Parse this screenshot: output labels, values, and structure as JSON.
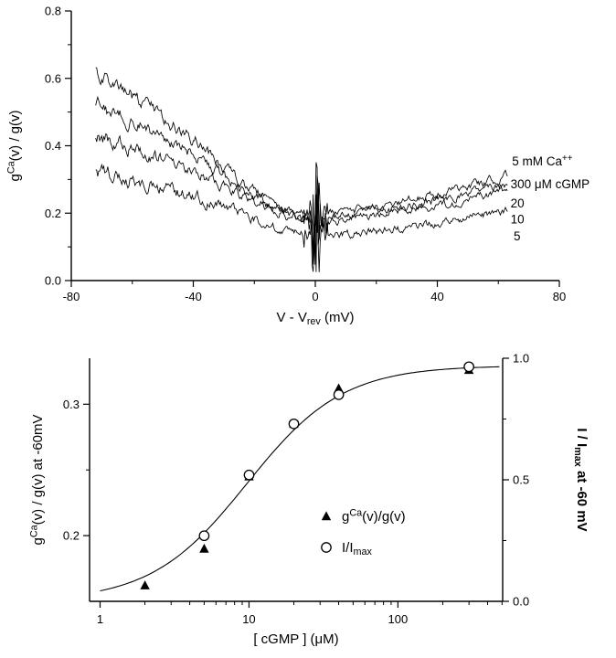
{
  "figure": {
    "background": "#ffffff",
    "ink": "#000000"
  },
  "chart_data": [
    {
      "id": "conductance_traces",
      "type": "line",
      "title": "",
      "xlabel": "V - V_{rev}  (mV)",
      "ylabel": "g^{Ca}(v) / g(v)",
      "xlim": [
        -80,
        80
      ],
      "ylim": [
        0,
        0.8
      ],
      "x_major_ticks": [
        -80,
        -40,
        0,
        40,
        80
      ],
      "x_tick_labels": [
        "-80",
        "-40",
        "0",
        "40",
        "80"
      ],
      "x_minor_ticks": [
        -60,
        -20,
        20,
        60
      ],
      "y_major_ticks": [
        0,
        0.2,
        0.4,
        0.6,
        0.8
      ],
      "y_tick_labels": [
        "0.0",
        "0.2",
        "0.4",
        "0.6",
        "0.8"
      ],
      "y_minor_ticks": [
        0.1,
        0.3,
        0.5,
        0.7
      ],
      "grid": false,
      "data_x_range": [
        -72,
        63
      ],
      "annotations": [
        {
          "text": "5 mM Ca^{++}",
          "v": 64.5,
          "g": 0.352
        },
        {
          "text": "300 μM cGMP",
          "v": 64.0,
          "g": 0.285
        },
        {
          "text": "20",
          "v": 64.0,
          "g": 0.228
        },
        {
          "text": "10",
          "v": 64.0,
          "g": 0.18
        },
        {
          "text": "5",
          "v": 65.0,
          "g": 0.13
        }
      ],
      "noise": {
        "white": 0.018,
        "corr": 0.72,
        "neg_gain": 0.9,
        "artifact_amp": 0.32,
        "artifact_range": 1.3,
        "near_amp": 0.07,
        "near_range": 4
      },
      "series": [
        {
          "name": "300 μM cGMP",
          "seed": 3001,
          "anchors": [
            [
              -72,
              0.625
            ],
            [
              -65,
              0.585
            ],
            [
              -60,
              0.55
            ],
            [
              -55,
              0.52
            ],
            [
              -50,
              0.49
            ],
            [
              -45,
              0.455
            ],
            [
              -40,
              0.42
            ],
            [
              -35,
              0.38
            ],
            [
              -30,
              0.335
            ],
            [
              -25,
              0.3
            ],
            [
              -20,
              0.265
            ],
            [
              -15,
              0.235
            ],
            [
              -10,
              0.215
            ],
            [
              -5,
              0.2
            ],
            [
              0,
              0.195
            ],
            [
              5,
              0.2
            ],
            [
              10,
              0.205
            ],
            [
              15,
              0.21
            ],
            [
              20,
              0.22
            ],
            [
              30,
              0.24
            ],
            [
              40,
              0.26
            ],
            [
              50,
              0.28
            ],
            [
              57,
              0.295
            ],
            [
              63,
              0.31
            ]
          ]
        },
        {
          "name": "20 μM cGMP",
          "seed": 3002,
          "anchors": [
            [
              -72,
              0.52
            ],
            [
              -65,
              0.49
            ],
            [
              -60,
              0.47
            ],
            [
              -50,
              0.43
            ],
            [
              -40,
              0.375
            ],
            [
              -30,
              0.31
            ],
            [
              -25,
              0.28
            ],
            [
              -20,
              0.25
            ],
            [
              -15,
              0.225
            ],
            [
              -10,
              0.205
            ],
            [
              -5,
              0.19
            ],
            [
              0,
              0.185
            ],
            [
              5,
              0.19
            ],
            [
              15,
              0.2
            ],
            [
              25,
              0.215
            ],
            [
              35,
              0.23
            ],
            [
              45,
              0.25
            ],
            [
              55,
              0.27
            ],
            [
              63,
              0.285
            ]
          ]
        },
        {
          "name": "10 μM cGMP",
          "seed": 3003,
          "anchors": [
            [
              -72,
              0.425
            ],
            [
              -65,
              0.41
            ],
            [
              -60,
              0.395
            ],
            [
              -50,
              0.36
            ],
            [
              -40,
              0.325
            ],
            [
              -30,
              0.28
            ],
            [
              -20,
              0.235
            ],
            [
              -15,
              0.215
            ],
            [
              -10,
              0.195
            ],
            [
              -5,
              0.18
            ],
            [
              0,
              0.175
            ],
            [
              5,
              0.175
            ],
            [
              15,
              0.185
            ],
            [
              25,
              0.2
            ],
            [
              35,
              0.215
            ],
            [
              45,
              0.23
            ],
            [
              55,
              0.25
            ],
            [
              63,
              0.265
            ]
          ]
        },
        {
          "name": "5 μM cGMP",
          "seed": 3004,
          "anchors": [
            [
              -72,
              0.32
            ],
            [
              -65,
              0.31
            ],
            [
              -60,
              0.3
            ],
            [
              -50,
              0.275
            ],
            [
              -40,
              0.25
            ],
            [
              -30,
              0.215
            ],
            [
              -20,
              0.18
            ],
            [
              -15,
              0.165
            ],
            [
              -10,
              0.15
            ],
            [
              -5,
              0.14
            ],
            [
              0,
              0.13
            ],
            [
              5,
              0.13
            ],
            [
              15,
              0.14
            ],
            [
              25,
              0.15
            ],
            [
              35,
              0.165
            ],
            [
              45,
              0.18
            ],
            [
              55,
              0.195
            ],
            [
              63,
              0.205
            ]
          ]
        }
      ]
    },
    {
      "id": "dose_response",
      "type": "scatter",
      "title": "",
      "xlabel": "[ cGMP ]  (μM)",
      "ylabel_left": "g^{Ca}(v) / g(v) at -60mV",
      "ylabel_right": "I / I_{max}  at  -60 mV",
      "x_scale": "log",
      "xlim": [
        0.85,
        505
      ],
      "x_major_ticks": [
        1,
        10,
        100
      ],
      "x_tick_labels": [
        "1",
        "10",
        "100"
      ],
      "ylim_left": [
        0.15,
        0.335
      ],
      "y_major_ticks_left": [
        0.2,
        0.3
      ],
      "y_tick_labels_left": [
        "0.2",
        "0.3"
      ],
      "y_minor_ticks_left": [
        0.25
      ],
      "ylim_right": [
        0,
        1
      ],
      "y_major_ticks_right": [
        0,
        0.5,
        1
      ],
      "y_tick_labels_right": [
        "0.0",
        "0.5",
        "1.0"
      ],
      "y_minor_ticks_right": [
        0.25,
        0.75
      ],
      "grid": false,
      "series": [
        {
          "name": "g^{Ca}(v)/g(v)",
          "marker": "filled-triangle",
          "axis": "left",
          "points": [
            [
              2,
              0.162
            ],
            [
              5,
              0.19
            ],
            [
              10,
              0.245
            ],
            [
              20,
              0.285
            ],
            [
              40,
              0.312
            ],
            [
              300,
              0.326
            ]
          ]
        },
        {
          "name": "I/I_{max}",
          "marker": "open-circle",
          "axis": "right",
          "points": [
            [
              5,
              0.27
            ],
            [
              10,
              0.52
            ],
            [
              20,
              0.73
            ],
            [
              40,
              0.85
            ],
            [
              300,
              0.965
            ]
          ]
        }
      ],
      "fit": {
        "model": "hill",
        "axis": "right",
        "ymax": 0.97,
        "k": 9.7,
        "n": 1.35,
        "x_range": [
          1,
          480
        ]
      }
    }
  ]
}
